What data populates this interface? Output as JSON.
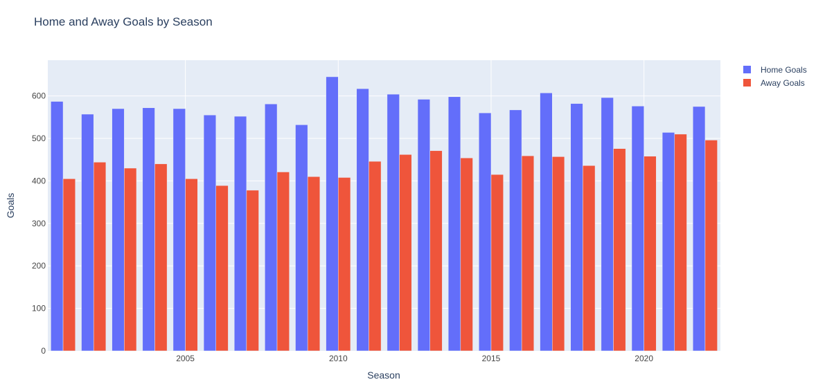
{
  "chart_data": {
    "type": "bar",
    "title": "Home and Away Goals by Season",
    "xlabel": "Season",
    "ylabel": "Goals",
    "x": [
      2001,
      2002,
      2003,
      2004,
      2005,
      2006,
      2007,
      2008,
      2009,
      2010,
      2011,
      2012,
      2013,
      2014,
      2015,
      2016,
      2017,
      2018,
      2019,
      2020,
      2021,
      2022
    ],
    "x_ticks": [
      2005,
      2010,
      2015,
      2020
    ],
    "y_ticks": [
      0,
      100,
      200,
      300,
      400,
      500,
      600
    ],
    "xlim": [
      2000.5,
      2022.5
    ],
    "ylim": [
      0,
      684
    ],
    "grid": true,
    "legend_position": "top-right",
    "series": [
      {
        "name": "Home Goals",
        "color": "#636efa",
        "values": [
          587,
          557,
          570,
          572,
          570,
          555,
          552,
          581,
          532,
          645,
          617,
          604,
          592,
          598,
          560,
          567,
          607,
          582,
          596,
          576,
          514,
          575
        ]
      },
      {
        "name": "Away Goals",
        "color": "#ef553b",
        "values": [
          405,
          444,
          430,
          440,
          405,
          389,
          378,
          421,
          410,
          408,
          446,
          462,
          471,
          454,
          415,
          459,
          457,
          436,
          476,
          458,
          510,
          496
        ]
      }
    ],
    "colors": {
      "plot_background": "#e5ecf6",
      "gridline": "#ffffff",
      "text": "#2a3f5f",
      "tick_text": "#444444"
    }
  }
}
